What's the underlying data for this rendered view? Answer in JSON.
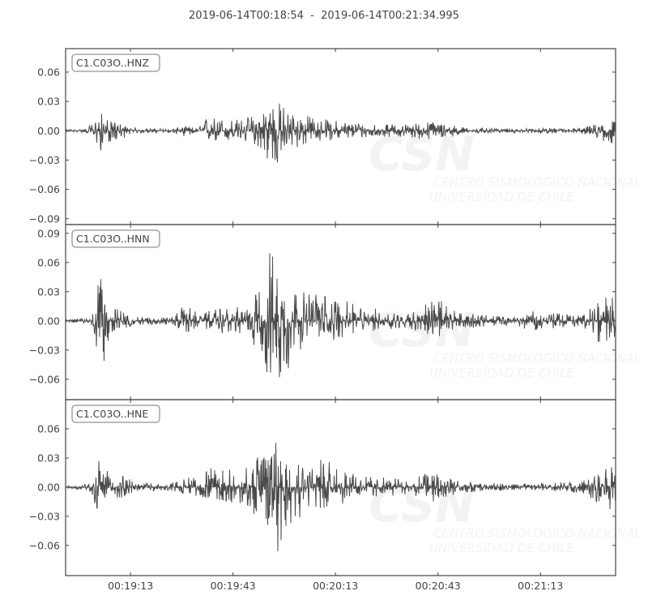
{
  "title": "2019-06-14T00:18:54  -  2019-06-14T00:21:34.995",
  "watermark": {
    "logo": "CSN",
    "line1": "CENTRO SISMOLÓGICO NACIONAL",
    "line2": "UNIVERSIDAD DE CHILE"
  },
  "colors": {
    "trace": "#4a4a4a",
    "frame": "#444444",
    "text": "#444444"
  },
  "chart_data": {
    "type": "line",
    "title": "2019-06-14T00:18:54  -  2019-06-14T00:21:34.995",
    "xlim": [
      "00:18:54",
      "00:21:34.995"
    ],
    "xticks": [
      "00:19:13",
      "00:19:43",
      "00:20:13",
      "00:20:43",
      "00:21:13"
    ],
    "grid": false,
    "shared_x": true,
    "panels": [
      {
        "name": "C1.C03O..HNZ",
        "ylim": [
          -0.096,
          0.084
        ],
        "yticks": [
          "0.06",
          "0.03",
          "0.00",
          "−0.03",
          "−0.06",
          "−0.09"
        ],
        "ytick_values": [
          0.06,
          0.03,
          0,
          -0.03,
          -0.06,
          -0.09
        ],
        "envelope": [
          [
            "00:18:54",
            0.001,
            -0.001
          ],
          [
            "00:19:00",
            0.002,
            -0.002
          ],
          [
            "00:19:02",
            0.008,
            -0.008
          ],
          [
            "00:19:04",
            0.02,
            -0.022
          ],
          [
            "00:19:07",
            0.01,
            -0.012
          ],
          [
            "00:19:10",
            0.008,
            -0.01
          ],
          [
            "00:19:13",
            0.003,
            -0.003
          ],
          [
            "00:19:25",
            0.002,
            -0.002
          ],
          [
            "00:19:29",
            0.005,
            -0.006
          ],
          [
            "00:19:33",
            0.003,
            -0.003
          ],
          [
            "00:19:35",
            0.015,
            -0.012
          ],
          [
            "00:19:45",
            0.012,
            -0.012
          ],
          [
            "00:19:50",
            0.018,
            -0.015
          ],
          [
            "00:19:55",
            0.035,
            -0.043
          ],
          [
            "00:20:00",
            0.02,
            -0.02
          ],
          [
            "00:20:10",
            0.012,
            -0.01
          ],
          [
            "00:20:30",
            0.006,
            -0.006
          ],
          [
            "00:20:42",
            0.01,
            -0.01
          ],
          [
            "00:20:50",
            0.004,
            -0.004
          ],
          [
            "00:21:00",
            0.002,
            -0.002
          ],
          [
            "00:21:25",
            0.003,
            -0.003
          ],
          [
            "00:21:34",
            0.012,
            -0.015
          ]
        ]
      },
      {
        "name": "C1.C03O..HNN",
        "ylim": [
          -0.081,
          0.099
        ],
        "yticks": [
          "0.09",
          "0.06",
          "0.03",
          "0.00",
          "−0.03",
          "−0.06"
        ],
        "ytick_values": [
          0.09,
          0.06,
          0.03,
          0,
          -0.03,
          -0.06
        ],
        "envelope": [
          [
            "00:18:54",
            0.001,
            -0.001
          ],
          [
            "00:19:00",
            0.003,
            -0.003
          ],
          [
            "00:19:02",
            0.015,
            -0.015
          ],
          [
            "00:19:04",
            0.047,
            -0.057
          ],
          [
            "00:19:07",
            0.015,
            -0.02
          ],
          [
            "00:19:10",
            0.012,
            -0.012
          ],
          [
            "00:19:14",
            0.004,
            -0.004
          ],
          [
            "00:19:25",
            0.004,
            -0.004
          ],
          [
            "00:19:30",
            0.02,
            -0.015
          ],
          [
            "00:19:33",
            0.005,
            -0.005
          ],
          [
            "00:19:37",
            0.012,
            -0.012
          ],
          [
            "00:19:47",
            0.015,
            -0.015
          ],
          [
            "00:19:52",
            0.04,
            -0.04
          ],
          [
            "00:19:54",
            0.083,
            -0.075
          ],
          [
            "00:19:57",
            0.05,
            -0.075
          ],
          [
            "00:20:02",
            0.03,
            -0.03
          ],
          [
            "00:20:09",
            0.03,
            -0.025
          ],
          [
            "00:20:20",
            0.015,
            -0.012
          ],
          [
            "00:20:35",
            0.008,
            -0.008
          ],
          [
            "00:20:42",
            0.025,
            -0.02
          ],
          [
            "00:20:50",
            0.008,
            -0.008
          ],
          [
            "00:21:05",
            0.004,
            -0.004
          ],
          [
            "00:21:10",
            0.01,
            -0.01
          ],
          [
            "00:21:25",
            0.006,
            -0.006
          ],
          [
            "00:21:34",
            0.03,
            -0.035
          ]
        ]
      },
      {
        "name": "C1.C03O..HNE",
        "ylim": [
          -0.091,
          0.09
        ],
        "yticks": [
          "0.06",
          "0.03",
          "0.00",
          "−0.03",
          "−0.06"
        ],
        "ytick_values": [
          0.06,
          0.03,
          0,
          -0.03,
          -0.06
        ],
        "envelope": [
          [
            "00:18:54",
            0.001,
            -0.001
          ],
          [
            "00:19:00",
            0.003,
            -0.003
          ],
          [
            "00:19:02",
            0.012,
            -0.012
          ],
          [
            "00:19:04",
            0.03,
            -0.035
          ],
          [
            "00:19:07",
            0.012,
            -0.015
          ],
          [
            "00:19:10",
            0.015,
            -0.012
          ],
          [
            "00:19:14",
            0.005,
            -0.005
          ],
          [
            "00:19:25",
            0.004,
            -0.004
          ],
          [
            "00:19:31",
            0.012,
            -0.01
          ],
          [
            "00:19:37",
            0.02,
            -0.012
          ],
          [
            "00:19:47",
            0.02,
            -0.02
          ],
          [
            "00:19:52",
            0.04,
            -0.045
          ],
          [
            "00:19:55",
            0.07,
            -0.078
          ],
          [
            "00:19:58",
            0.045,
            -0.05
          ],
          [
            "00:20:03",
            0.03,
            -0.03
          ],
          [
            "00:20:09",
            0.03,
            -0.025
          ],
          [
            "00:20:20",
            0.012,
            -0.012
          ],
          [
            "00:20:35",
            0.008,
            -0.008
          ],
          [
            "00:20:42",
            0.02,
            -0.015
          ],
          [
            "00:20:50",
            0.006,
            -0.006
          ],
          [
            "00:21:05",
            0.003,
            -0.003
          ],
          [
            "00:21:25",
            0.006,
            -0.006
          ],
          [
            "00:21:34",
            0.022,
            -0.025
          ]
        ]
      }
    ]
  }
}
